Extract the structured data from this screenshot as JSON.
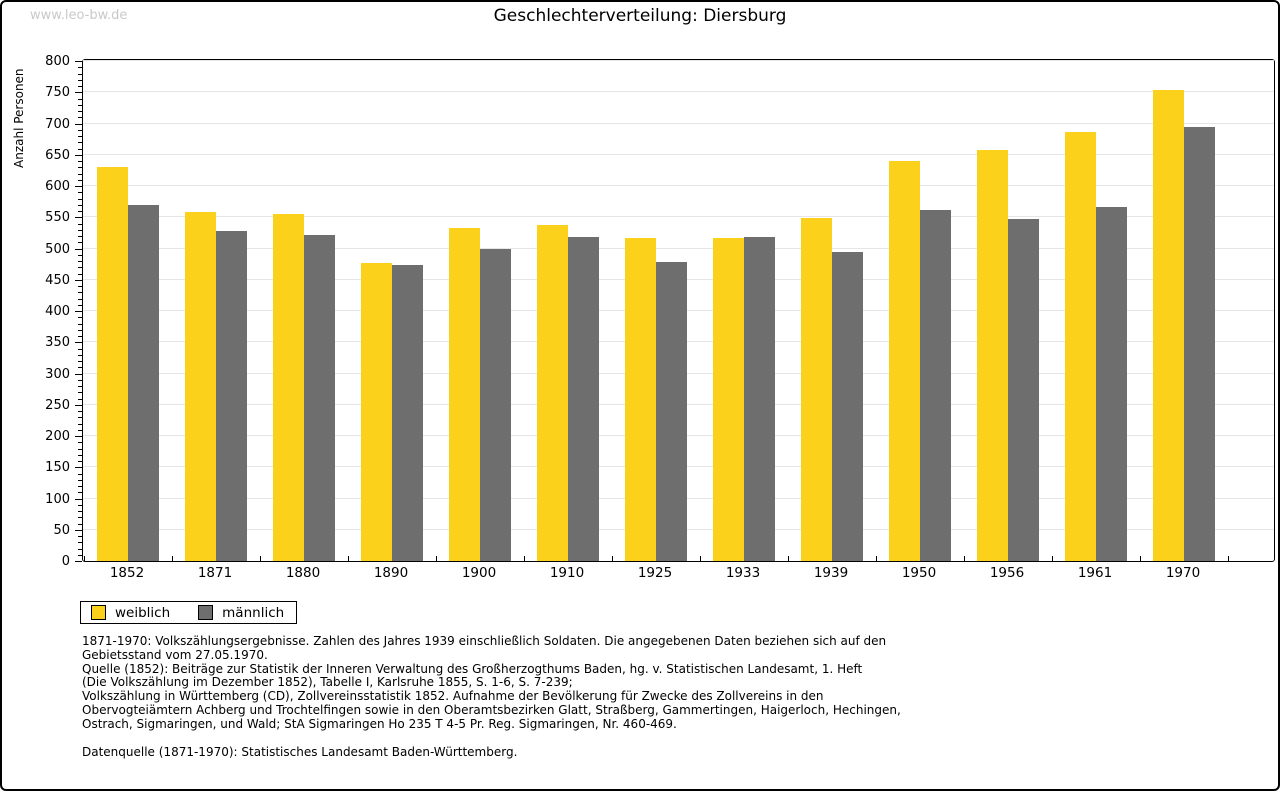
{
  "header": {
    "watermark": "www.leo-bw.de",
    "title": "Geschlechterverteilung: Diersburg"
  },
  "chart_data": {
    "type": "bar",
    "title": "Geschlechterverteilung: Diersburg",
    "xlabel": "",
    "ylabel": "Anzahl Personen",
    "ylim": [
      0,
      800
    ],
    "ytick_step": 50,
    "ytick_minor_step": 10,
    "grid": true,
    "legend_position": "bottom-left",
    "categories": [
      "1852",
      "1871",
      "1880",
      "1890",
      "1900",
      "1910",
      "1925",
      "1933",
      "1939",
      "1950",
      "1956",
      "1961",
      "1970"
    ],
    "series": [
      {
        "name": "weiblich",
        "color": "#fcd11c",
        "values": [
          631,
          559,
          556,
          477,
          533,
          538,
          517,
          517,
          549,
          640,
          658,
          687,
          753
        ]
      },
      {
        "name": "männlich",
        "color": "#6e6e6e",
        "values": [
          570,
          528,
          521,
          474,
          500,
          518,
          479,
          519,
          495,
          561,
          548,
          567,
          695
        ]
      }
    ]
  },
  "footnotes": {
    "lines": [
      "1871-1970: Volkszählungsergebnisse. Zahlen des Jahres 1939 einschließlich Soldaten. Die angegebenen Daten beziehen sich auf den",
      "Gebietsstand vom 27.05.1970.",
      "Quelle (1852): Beiträge zur Statistik der Inneren Verwaltung des Großherzogthums Baden, hg. v. Statistischen Landesamt, 1. Heft",
      "(Die Volkszählung im Dezember 1852), Tabelle I, Karlsruhe 1855, S. 1-6, S. 7-239;",
      "Volkszählung in Württemberg (CD), Zollvereinsstatistik 1852. Aufnahme der Bevölkerung für Zwecke des Zollvereins in den",
      "Obervogteiämtern Achberg und Trochtelfingen sowie in den Oberamtsbezirken Glatt, Straßberg, Gammertingen, Haigerloch, Hechingen,",
      "Ostrach, Sigmaringen, und Wald; StA Sigmaringen Ho 235 T 4-5 Pr. Reg. Sigmaringen, Nr. 460-469."
    ],
    "datasource": "Datenquelle (1871-1970): Statistisches Landesamt Baden-Württemberg."
  }
}
